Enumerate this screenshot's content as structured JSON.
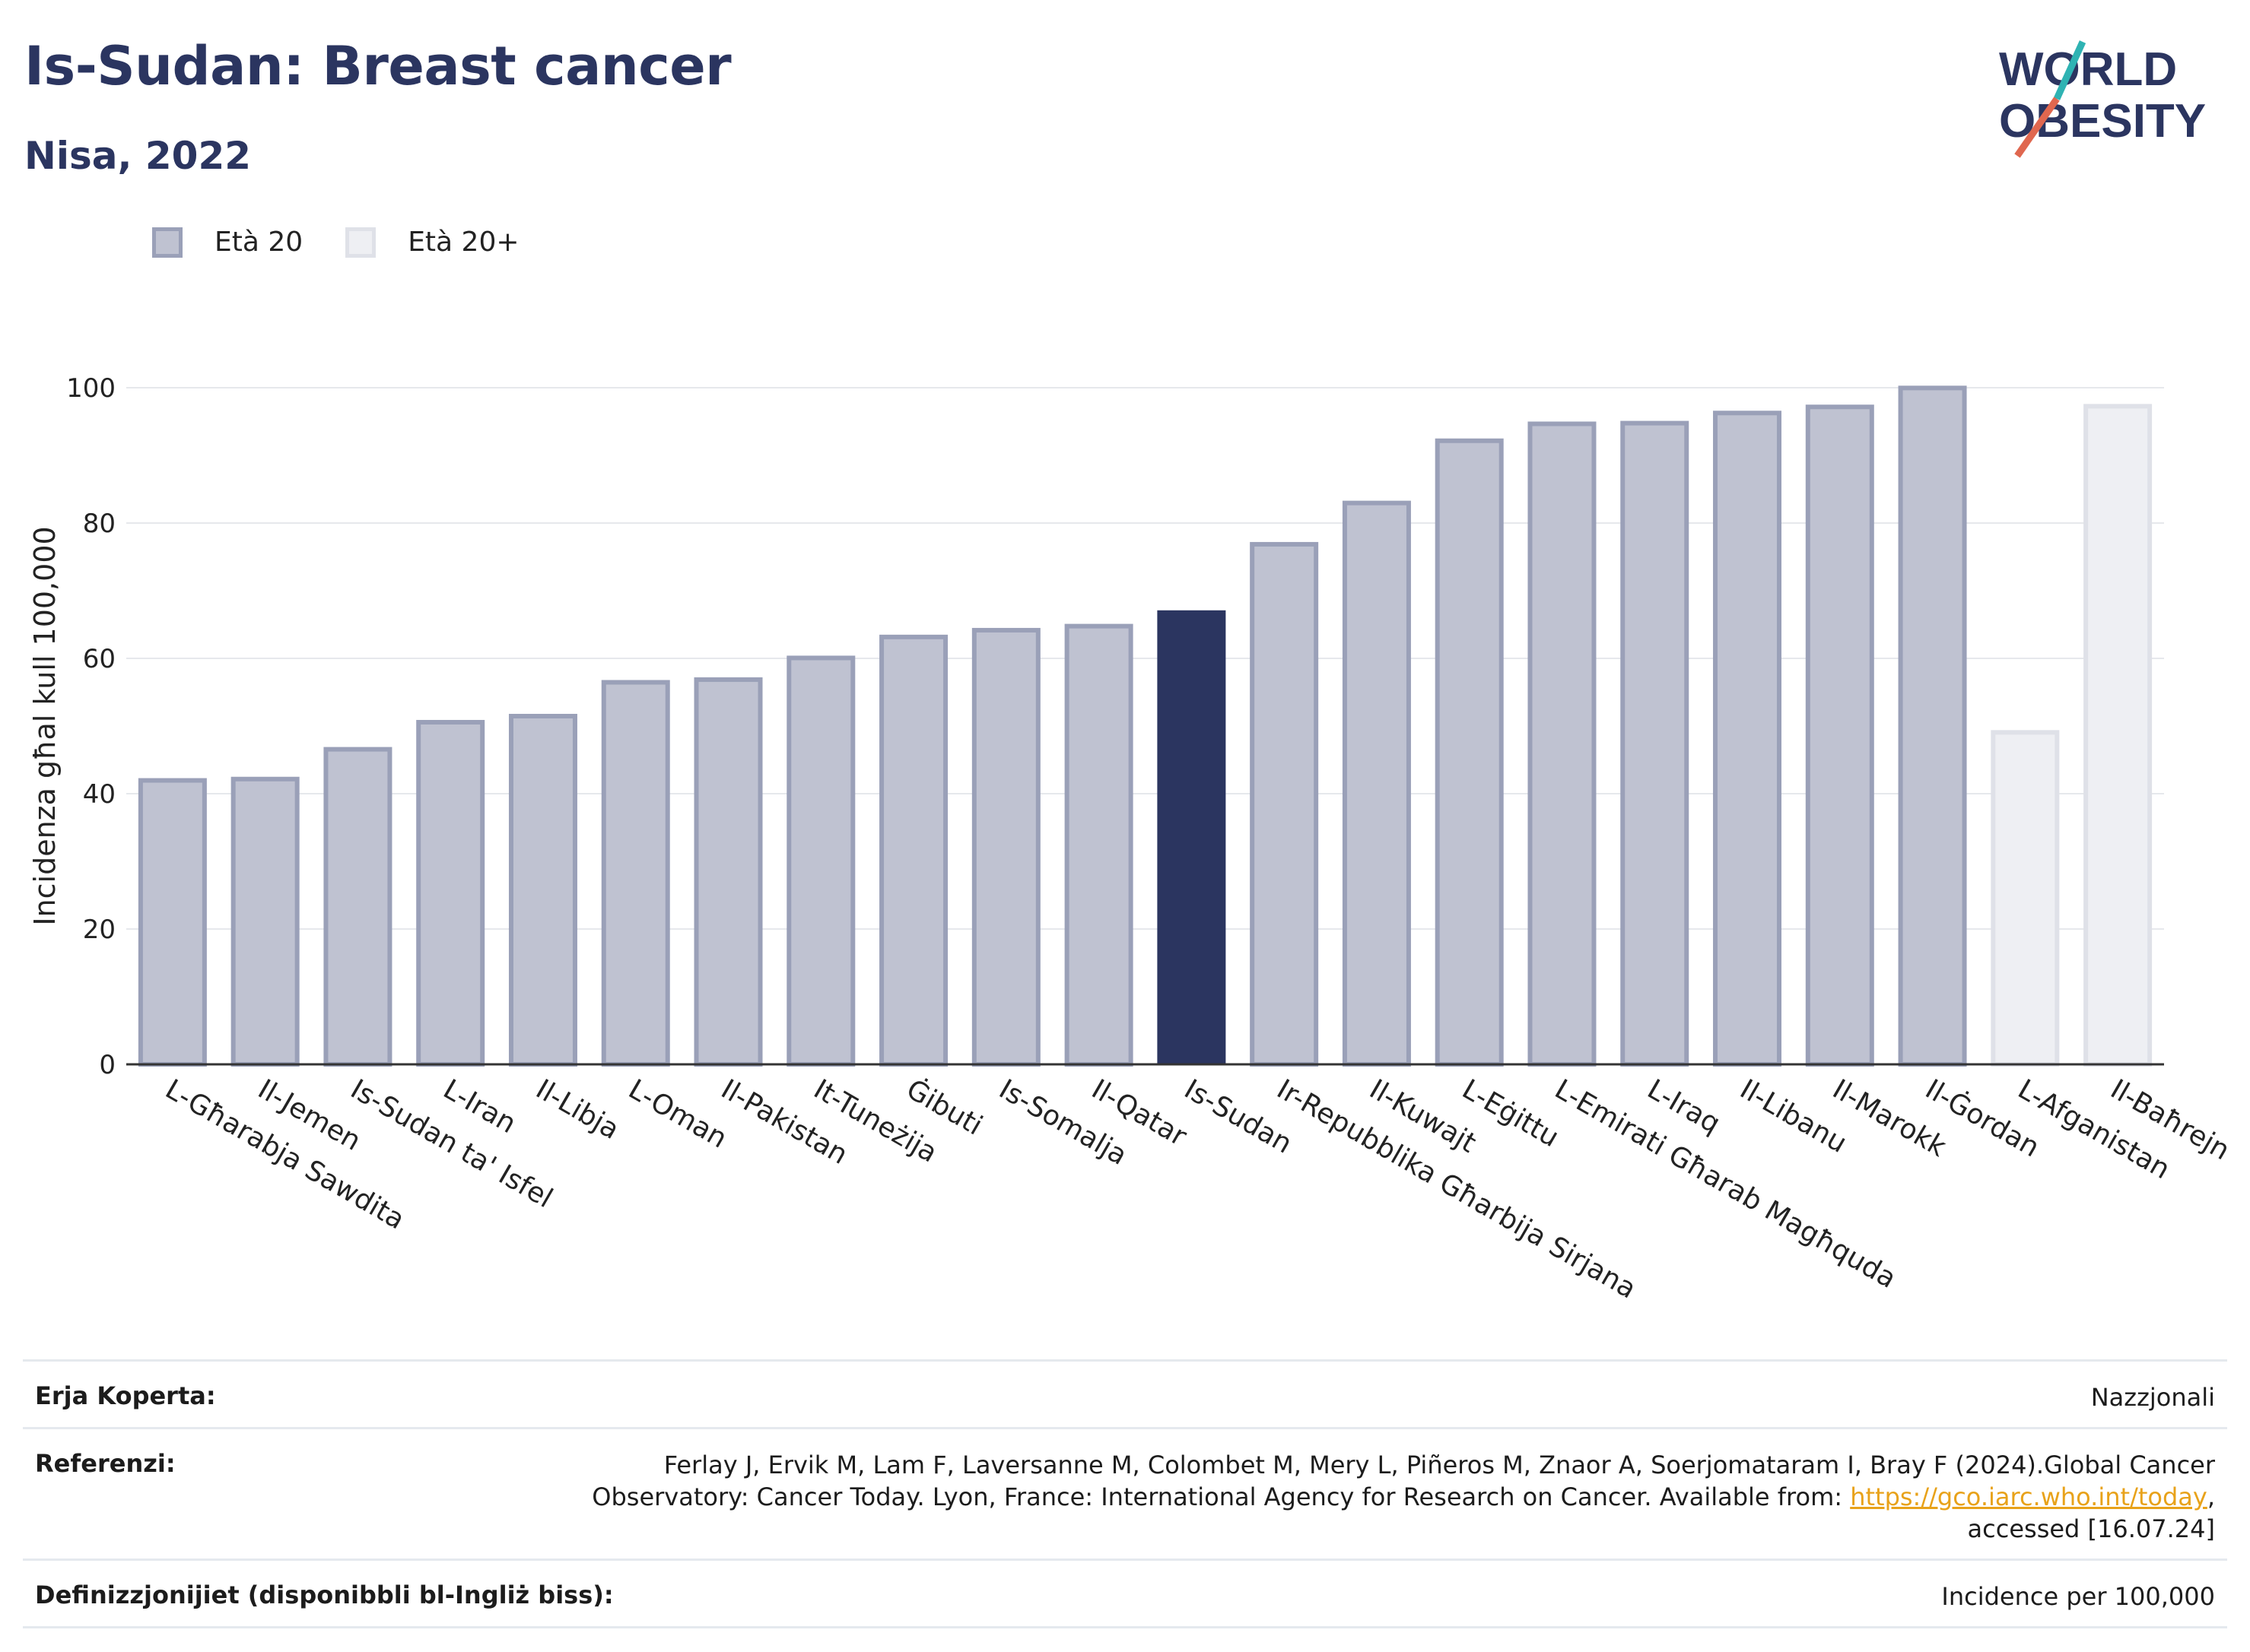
{
  "header": {
    "title": "Is-Sudan: Breast cancer",
    "subtitle": "Nisa, 2022",
    "logo_line1": "WORLD",
    "logo_line2": "OBESITY"
  },
  "legend": [
    {
      "label": "Età 20",
      "color": "#bfc2d1",
      "border": "#9aa0b8"
    },
    {
      "label": "Età 20+",
      "color": "#eeeff3",
      "border": "#dfe1e8"
    }
  ],
  "colors": {
    "highlight": "#2b3560",
    "bar": "#bfc2d1",
    "bar_border": "#9aa0b8",
    "bar_light": "#eeeff3",
    "bar_light_border": "#dfe1e8"
  },
  "chart_data": {
    "type": "bar",
    "ylabel": "Incidenza għal kull 100,000",
    "ylim": [
      0,
      100
    ],
    "yticks": [
      0,
      20,
      40,
      60,
      80,
      100
    ],
    "grid": true,
    "categories": [
      "L-Għarabja Sawdita",
      "Il-Jemen",
      "Is-Sudan ta' Isfel",
      "L-Iran",
      "Il-Libja",
      "L-Oman",
      "Il-Pakistan",
      "It-Tuneżija",
      "Ġibuti",
      "Is-Somalja",
      "Il-Qatar",
      "Is-Sudan",
      "Ir-Repubblika Għarbija Sirjana",
      "Il-Kuwajt",
      "L-Eġittu",
      "L-Emirati Għarab Magħquda",
      "L-Iraq",
      "Il-Libanu",
      "Il-Marokk",
      "Il-Ġordan",
      "L-Afganistan",
      "Il-Baħrejn"
    ],
    "values": [
      42.3,
      42.5,
      46.9,
      50.9,
      51.8,
      56.8,
      57.2,
      60.4,
      63.5,
      64.5,
      65.1,
      67.1,
      77.2,
      83.3,
      92.5,
      95.0,
      95.1,
      96.6,
      97.5,
      100.3,
      49.4,
      97.6
    ],
    "group": [
      "Età 20",
      "Età 20",
      "Età 20",
      "Età 20",
      "Età 20",
      "Età 20",
      "Età 20",
      "Età 20",
      "Età 20",
      "Età 20",
      "Età 20",
      "Età 20",
      "Età 20",
      "Età 20",
      "Età 20",
      "Età 20",
      "Età 20",
      "Età 20",
      "Età 20",
      "Età 20",
      "Età 20+",
      "Età 20+"
    ],
    "highlight": "Is-Sudan"
  },
  "footer": {
    "coverage_label": "Erja Koperta:",
    "coverage_value": "Nazzjonali",
    "references_label": "Referenzi:",
    "references_text": "Ferlay J, Ervik M, Lam F, Laversanne M, Colombet M, Mery L, Piñeros M, Znaor A, Soerjomataram I, Bray F (2024).Global Cancer Observatory: Cancer Today. Lyon, France: International Agency for Research on Cancer. Available from:",
    "references_link": "https://gco.iarc.who.int/today",
    "references_tail": ", accessed [16.07.24]",
    "definitions_label": "Definizzjonijiet (disponibbli bl-Ingliż biss):",
    "definitions_value": "Incidence per 100,000"
  }
}
